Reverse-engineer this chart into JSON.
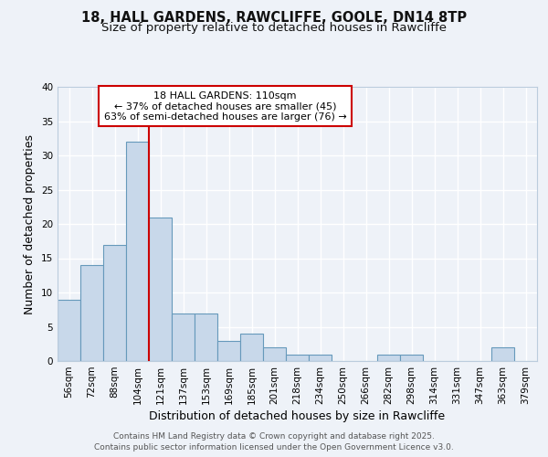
{
  "title1": "18, HALL GARDENS, RAWCLIFFE, GOOLE, DN14 8TP",
  "title2": "Size of property relative to detached houses in Rawcliffe",
  "xlabel": "Distribution of detached houses by size in Rawcliffe",
  "ylabel": "Number of detached properties",
  "bin_labels": [
    "56sqm",
    "72sqm",
    "88sqm",
    "104sqm",
    "121sqm",
    "137sqm",
    "153sqm",
    "169sqm",
    "185sqm",
    "201sqm",
    "218sqm",
    "234sqm",
    "250sqm",
    "266sqm",
    "282sqm",
    "298sqm",
    "314sqm",
    "331sqm",
    "347sqm",
    "363sqm",
    "379sqm"
  ],
  "bar_heights": [
    9,
    14,
    17,
    32,
    21,
    7,
    7,
    3,
    4,
    2,
    1,
    1,
    0,
    0,
    1,
    1,
    0,
    0,
    0,
    2,
    0
  ],
  "bar_color": "#c8d8ea",
  "bar_edge_color": "#6699bb",
  "red_line_x": 3.5,
  "red_line_color": "#cc0000",
  "annotation_text": "18 HALL GARDENS: 110sqm\n← 37% of detached houses are smaller (45)\n63% of semi-detached houses are larger (76) →",
  "annotation_box_color": "white",
  "annotation_box_edge_color": "#cc0000",
  "ylim": [
    0,
    40
  ],
  "yticks": [
    0,
    5,
    10,
    15,
    20,
    25,
    30,
    35,
    40
  ],
  "footer_text1": "Contains HM Land Registry data © Crown copyright and database right 2025.",
  "footer_text2": "Contains public sector information licensed under the Open Government Licence v3.0.",
  "background_color": "#eef2f8",
  "grid_color": "#ffffff",
  "title_fontsize": 10.5,
  "subtitle_fontsize": 9.5,
  "axis_label_fontsize": 9,
  "tick_fontsize": 7.5,
  "annotation_fontsize": 8,
  "footer_fontsize": 6.5
}
